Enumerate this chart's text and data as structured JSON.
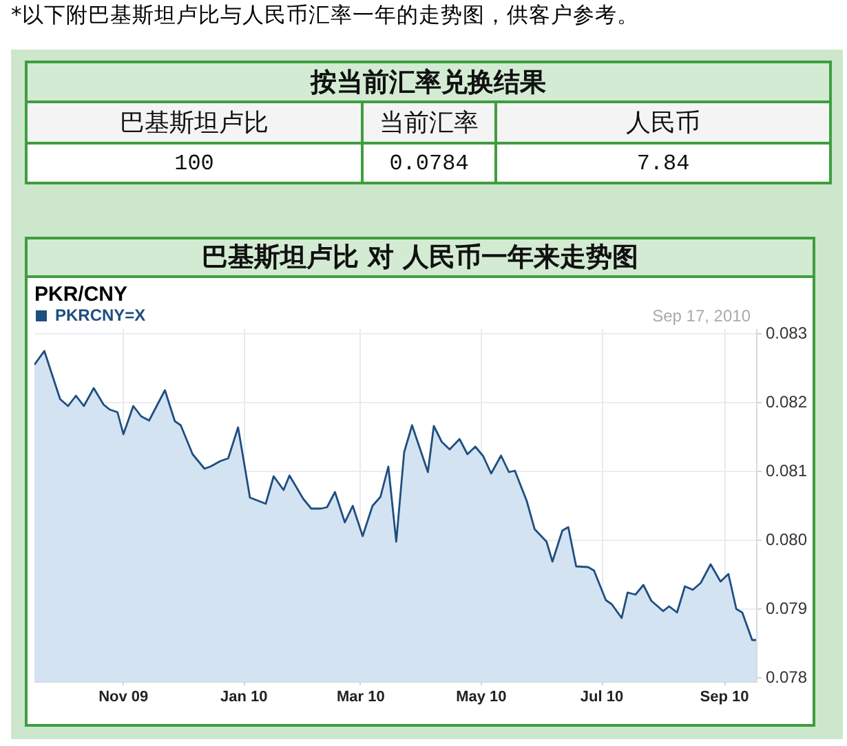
{
  "chart_data": [
    {
      "type": "other",
      "title": "按当前汇率兑换结果",
      "categories": [
        "巴基斯坦卢比",
        "当前汇率",
        "人民币"
      ],
      "values": [
        100,
        0.0784,
        7.84
      ],
      "data_labels": true,
      "annotations": [
        "*以下附巴基斯坦卢比与人民币汇率一年的走势图，供客户参考。"
      ]
    },
    {
      "type": "area",
      "title": "巴基斯坦卢比 对 人民币一年来走势图",
      "subtitle": "PKR/CNY",
      "annotations": [
        "Sep 17, 2010"
      ],
      "xlim": [
        "2009-09-17",
        "2010-09-17"
      ],
      "xticks": [
        {
          "value": "2009-11-01",
          "label": "Nov 09"
        },
        {
          "value": "2010-01-01",
          "label": "Jan 10"
        },
        {
          "value": "2010-03-01",
          "label": "Mar 10"
        },
        {
          "value": "2010-05-01",
          "label": "May 10"
        },
        {
          "value": "2010-07-01",
          "label": "Jul 10"
        },
        {
          "value": "2010-09-01",
          "label": "Sep 10"
        }
      ],
      "ylim": [
        0.07795,
        0.08307
      ],
      "yticks": [
        0.078,
        0.079,
        {
          "value": 0.08,
          "label": "0.080"
        },
        0.081,
        0.082,
        0.083
      ],
      "grid": true,
      "legend": "top left",
      "series": [
        {
          "name": "PKRCNY=X",
          "color": "#1f4e80",
          "x": [
            "2009-09-17",
            "2009-09-22",
            "2009-09-30",
            "2009-10-04",
            "2009-10-08",
            "2009-10-12",
            "2009-10-17",
            "2009-10-22",
            "2009-10-25",
            "2009-10-29",
            "2009-11-01",
            "2009-11-06",
            "2009-11-10",
            "2009-11-14",
            "2009-11-22",
            "2009-11-27",
            "2009-11-30",
            "2009-12-06",
            "2009-12-12",
            "2009-12-15",
            "2009-12-20",
            "2009-12-24",
            "2009-12-29",
            "2010-01-04",
            "2010-01-12",
            "2010-01-16",
            "2010-01-21",
            "2010-01-24",
            "2010-01-31",
            "2010-02-04",
            "2010-02-09",
            "2010-02-12",
            "2010-02-16",
            "2010-02-21",
            "2010-02-25",
            "2010-03-02",
            "2010-03-07",
            "2010-03-11",
            "2010-03-15",
            "2010-03-19",
            "2010-03-23",
            "2010-03-27",
            "2010-04-04",
            "2010-04-07",
            "2010-04-11",
            "2010-04-15",
            "2010-04-20",
            "2010-04-24",
            "2010-04-28",
            "2010-05-02",
            "2010-05-06",
            "2010-05-11",
            "2010-05-15",
            "2010-05-18",
            "2010-05-24",
            "2010-05-28",
            "2010-06-03",
            "2010-06-06",
            "2010-06-11",
            "2010-06-14",
            "2010-06-18",
            "2010-06-24",
            "2010-06-27",
            "2010-07-03",
            "2010-07-06",
            "2010-07-11",
            "2010-07-14",
            "2010-07-18",
            "2010-07-22",
            "2010-07-26",
            "2010-08-01",
            "2010-08-04",
            "2010-08-08",
            "2010-08-12",
            "2010-08-16",
            "2010-08-20",
            "2010-08-25",
            "2010-08-30",
            "2010-09-03",
            "2010-09-07",
            "2010-09-10",
            "2010-09-15",
            "2010-09-17"
          ],
          "values": [
            0.08255,
            0.08275,
            0.08205,
            0.08195,
            0.0821,
            0.08195,
            0.08221,
            0.08197,
            0.0819,
            0.08186,
            0.08154,
            0.08195,
            0.0818,
            0.08174,
            0.08218,
            0.08173,
            0.08167,
            0.08125,
            0.08104,
            0.08107,
            0.08115,
            0.08119,
            0.08164,
            0.08062,
            0.08053,
            0.08093,
            0.08073,
            0.08094,
            0.0806,
            0.08046,
            0.08046,
            0.08048,
            0.0807,
            0.08026,
            0.0805,
            0.08006,
            0.0805,
            0.08063,
            0.08107,
            0.07998,
            0.08128,
            0.08167,
            0.08099,
            0.08166,
            0.08143,
            0.08132,
            0.08147,
            0.08125,
            0.08136,
            0.08122,
            0.08097,
            0.08123,
            0.08099,
            0.08101,
            0.08057,
            0.08016,
            0.07998,
            0.07969,
            0.08014,
            0.08019,
            0.07962,
            0.07961,
            0.07956,
            0.07913,
            0.07907,
            0.07887,
            0.07924,
            0.07921,
            0.07935,
            0.07912,
            0.07897,
            0.07904,
            0.07895,
            0.07933,
            0.07928,
            0.07938,
            0.07965,
            0.0794,
            0.07951,
            0.079,
            0.07895,
            0.07855,
            0.07855
          ]
        }
      ]
    }
  ]
}
